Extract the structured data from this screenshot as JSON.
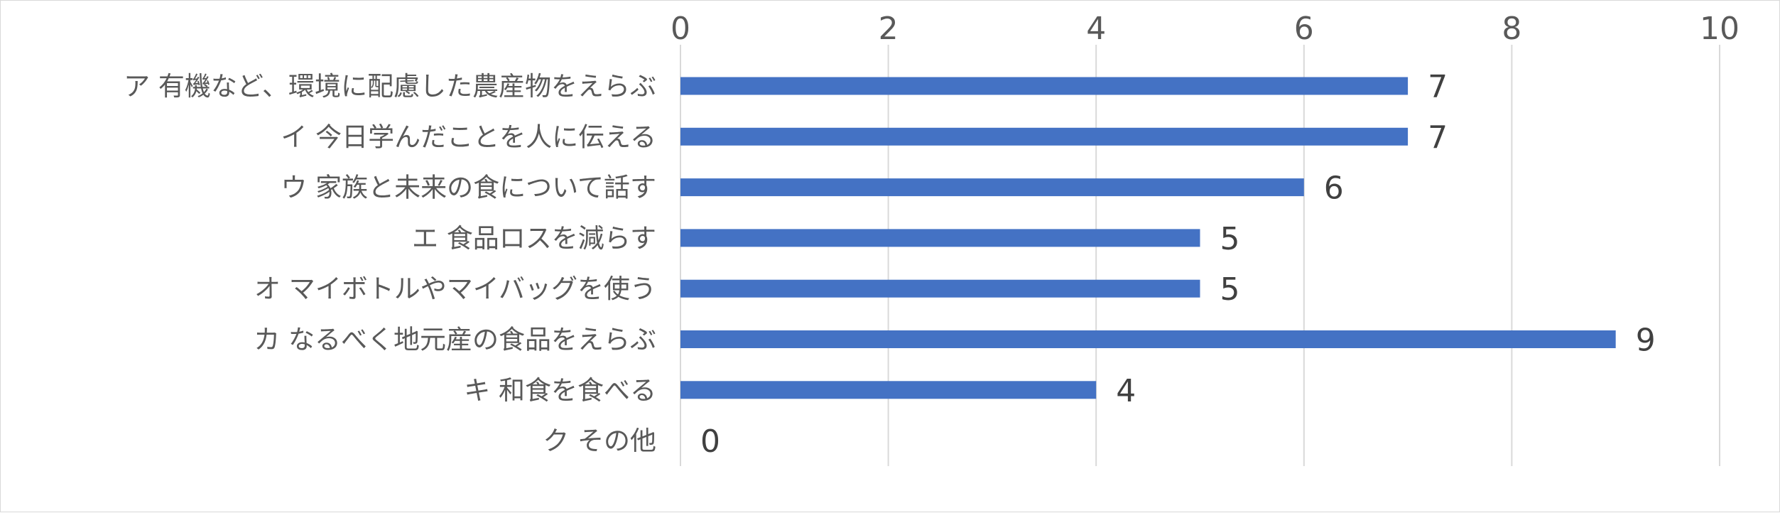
{
  "chart_data": {
    "type": "bar",
    "orientation": "horizontal",
    "categories": [
      "ア 有機など、環境に配慮した農産物をえらぶ",
      "イ 今日学んだことを人に伝える",
      "ウ 家族と未来の食について話す",
      "エ 食品ロスを減らす",
      "オ マイボトルやマイバッグを使う",
      "カ なるべく地元産の食品をえらぶ",
      "キ 和食を食べる",
      "ク その他"
    ],
    "values": [
      7,
      7,
      6,
      5,
      5,
      9,
      4,
      0
    ],
    "data_labels": [
      "7",
      "7",
      "6",
      "5",
      "5",
      "9",
      "4",
      "0"
    ],
    "xlim": [
      0,
      10
    ],
    "x_ticks": [
      "0",
      "2",
      "4",
      "6",
      "8",
      "10"
    ],
    "x_axis_position": "top",
    "grid": true,
    "legend": "none",
    "title": "",
    "xlabel": "",
    "ylabel": "",
    "colors": {
      "bar": "#4472c4",
      "grid": "#d9d9d9",
      "tick_text": "#595959",
      "label_text": "#404040",
      "border": "#d9d9d9"
    }
  }
}
